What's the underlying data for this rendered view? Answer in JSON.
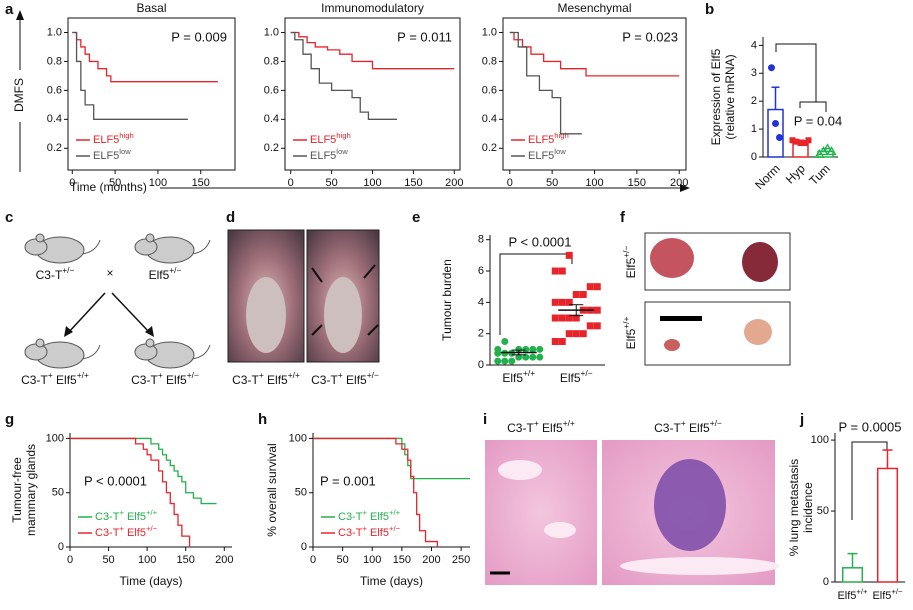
{
  "chart_data": [
    {
      "type": "step",
      "panel": "a",
      "title": "Basal",
      "annotation": "P = 0.009",
      "ylabel": "DMFS",
      "xlabel": "Time (months)",
      "frame": true,
      "legend": "lower left",
      "xlim": [
        -5,
        190
      ],
      "xticks": [
        0,
        50,
        100,
        150
      ],
      "ylim": [
        0.05,
        1.1
      ],
      "yticks": [
        0.2,
        0.4,
        0.6,
        0.8,
        {
          "value": 1,
          "label": "1.0"
        }
      ],
      "series": [
        {
          "name": [
            "ELF5",
            "high"
          ],
          "color": "#e8242b",
          "x": [
            0,
            5,
            10,
            15,
            20,
            30,
            40,
            45,
            170
          ],
          "values": [
            1,
            0.95,
            0.9,
            0.85,
            0.8,
            0.75,
            0.7,
            0.66,
            0.66
          ]
        },
        {
          "name": [
            "ELF5",
            "low"
          ],
          "color": "#555555",
          "x": [
            0,
            5,
            10,
            15,
            25,
            135
          ],
          "values": [
            1,
            0.8,
            0.6,
            0.5,
            0.4,
            0.4
          ]
        }
      ]
    },
    {
      "type": "step",
      "title": "Immunomodulatory",
      "annotation": "P = 0.011",
      "frame": true,
      "legend": "lower left",
      "xlim": [
        -7,
        207
      ],
      "xticks": [
        0,
        50,
        100,
        150,
        200
      ],
      "ylim": [
        0.05,
        1.1
      ],
      "yticks": [
        0.2,
        0.4,
        0.6,
        0.8,
        {
          "value": 1,
          "label": "1.0"
        }
      ],
      "series": [
        {
          "name": [
            "ELF5",
            "high"
          ],
          "color": "#e8242b",
          "x": [
            0,
            10,
            20,
            30,
            45,
            60,
            75,
            100,
            200
          ],
          "values": [
            1,
            0.97,
            0.93,
            0.9,
            0.88,
            0.85,
            0.8,
            0.75,
            0.75
          ]
        },
        {
          "name": [
            "ELF5",
            "low"
          ],
          "color": "#555555",
          "x": [
            0,
            5,
            15,
            25,
            35,
            50,
            75,
            85,
            95,
            130
          ],
          "values": [
            1,
            0.95,
            0.85,
            0.75,
            0.65,
            0.6,
            0.55,
            0.45,
            0.4,
            0.4
          ]
        }
      ]
    },
    {
      "type": "step",
      "title": "Mesenchymal",
      "annotation": "P = 0.023",
      "frame": true,
      "legend": "lower left",
      "xlim": [
        -8,
        208
      ],
      "xticks": [
        0,
        50,
        100,
        150,
        200
      ],
      "ylim": [
        0.05,
        1.1
      ],
      "yticks": [
        0.2,
        0.4,
        0.6,
        0.8,
        {
          "value": 1,
          "label": "1.0"
        }
      ],
      "series": [
        {
          "name": [
            "ELF5",
            "high"
          ],
          "color": "#e8242b",
          "x": [
            0,
            5,
            15,
            25,
            40,
            60,
            90,
            200
          ],
          "values": [
            1,
            0.95,
            0.9,
            0.85,
            0.8,
            0.75,
            0.7,
            0.7
          ]
        },
        {
          "name": [
            "ELF5",
            "low"
          ],
          "color": "#555555",
          "x": [
            0,
            10,
            20,
            35,
            50,
            60,
            85
          ],
          "values": [
            1,
            0.9,
            0.7,
            0.6,
            0.55,
            0.3,
            0.3
          ]
        }
      ]
    },
    {
      "type": "dotbar",
      "panel": "b",
      "annotation": "P = 0.04",
      "ylabel": [
        "Expression of Elf5",
        "(relative mRNA)"
      ],
      "categories": [
        "Norm",
        "Hyp",
        "Tum"
      ],
      "colors": [
        "#2433d6",
        "#e8242b",
        "#22b14c"
      ],
      "values": [
        1.7,
        0.55,
        0.2
      ],
      "errors": [
        0.8,
        0.05,
        0.1
      ],
      "points": [
        [
          3.2,
          1.2,
          0.7
        ],
        [
          0.6,
          0.55,
          0.5,
          0.5,
          0.6
        ],
        [
          0.1,
          0.2,
          0.3,
          0.2
        ]
      ],
      "ylim": [
        0,
        4.3
      ],
      "yticks": [
        0,
        1,
        2,
        3,
        4
      ]
    },
    {
      "type": "scattermean",
      "panel": "e",
      "annotation": "P < 0.0001",
      "ylabel": [
        "Tumour burden"
      ],
      "categories": [
        [
          "Elf5",
          "+/+"
        ],
        [
          "Elf5",
          "+/−"
        ]
      ],
      "colors": [
        "#22b14c",
        "#e8242b"
      ],
      "values": [
        0.8,
        3.5
      ],
      "errors": [
        0.15,
        0.35
      ],
      "points": [
        [
          0.25,
          0.25,
          0.25,
          0.5,
          0.5,
          0.5,
          0.5,
          0.75,
          0.75,
          0.75,
          1,
          1,
          1,
          1,
          1,
          1.5
        ],
        [
          1.5,
          1.5,
          2,
          2,
          2,
          2.5,
          2.5,
          3,
          3,
          3,
          3,
          3.5,
          3.5,
          3.5,
          4,
          4,
          4,
          4.5,
          4.5,
          5,
          5,
          6,
          6,
          7
        ]
      ],
      "ylim": [
        0,
        8.3
      ],
      "yticks": [
        0,
        2,
        4,
        6,
        8
      ]
    },
    {
      "type": "step",
      "panel": "g",
      "annotation": "P < 0.0001",
      "ylabel": [
        "Tumour-free",
        "mammary glands"
      ],
      "xlabel": "Time (days)",
      "frame": false,
      "legend": "lower left",
      "xlim": [
        0,
        210
      ],
      "xticks": [
        0,
        50,
        100,
        150,
        200
      ],
      "ylim": [
        0,
        105
      ],
      "yticks": [
        0,
        50,
        100
      ],
      "series": [
        {
          "name": [
            "C3-T",
            "+",
            " Elf5",
            "+/+"
          ],
          "color": "#22b14c",
          "x": [
            0,
            105,
            115,
            120,
            125,
            130,
            135,
            140,
            145,
            150,
            160,
            170,
            190
          ],
          "values": [
            100,
            95,
            90,
            85,
            80,
            75,
            70,
            65,
            60,
            50,
            45,
            40,
            40
          ]
        },
        {
          "name": [
            "C3-T",
            "+",
            " Elf5",
            "+/−"
          ],
          "color": "#e8242b",
          "x": [
            0,
            85,
            95,
            100,
            105,
            115,
            120,
            125,
            130,
            135,
            140,
            145,
            155
          ],
          "values": [
            100,
            95,
            90,
            85,
            80,
            70,
            60,
            50,
            40,
            30,
            20,
            10,
            0
          ]
        }
      ]
    },
    {
      "type": "step",
      "panel": "h",
      "annotation": "P = 0.001",
      "ylabel": [
        "% overall survival"
      ],
      "xlabel": "Time (days)",
      "frame": false,
      "legend": "lower left",
      "xlim": [
        0,
        265
      ],
      "xticks": [
        0,
        50,
        100,
        150,
        200,
        250
      ],
      "ylim": [
        0,
        105
      ],
      "yticks": [
        0,
        50,
        100
      ],
      "series": [
        {
          "name": [
            "C3-T",
            "+",
            " Elf5",
            "+/+"
          ],
          "color": "#22b14c",
          "x": [
            0,
            150,
            155,
            160,
            165,
            265
          ],
          "values": [
            100,
            95,
            85,
            75,
            63,
            63
          ]
        },
        {
          "name": [
            "C3-T",
            "+",
            " Elf5",
            "+/−"
          ],
          "color": "#e8242b",
          "x": [
            0,
            140,
            150,
            160,
            165,
            170,
            175,
            180,
            190,
            210
          ],
          "values": [
            100,
            95,
            90,
            80,
            65,
            50,
            30,
            15,
            5,
            0
          ]
        }
      ]
    },
    {
      "type": "bar",
      "panel": "j",
      "annotation": "P = 0.0005",
      "ylabel": [
        "% lung metastasis",
        "incidence"
      ],
      "categories": [
        [
          "Elf5",
          "+/+"
        ],
        [
          "Elf5",
          "+/−"
        ]
      ],
      "colors": [
        "#22b14c",
        "#e8242b"
      ],
      "values": [
        10,
        80
      ],
      "errors": [
        10,
        13
      ],
      "ylim": [
        0,
        105
      ],
      "yticks": [
        0,
        50,
        100
      ]
    }
  ],
  "panels": {
    "c": {
      "letter": "c",
      "labels": [
        [
          "C3-T",
          "+/−"
        ],
        "×",
        [
          "Elf5",
          "+/−"
        ],
        [
          "C3-T",
          "+",
          " Elf5",
          "+/+"
        ],
        [
          "C3-T",
          "+",
          " Elf5",
          "+/−"
        ]
      ]
    },
    "d": {
      "letter": "d",
      "labels": [
        [
          "C3-T",
          "+",
          " Elf5",
          "+/+"
        ],
        [
          "C3-T",
          "+",
          " Elf5",
          "+/−"
        ]
      ]
    },
    "f": {
      "letter": "f",
      "labels": [
        [
          "Elf5",
          "+/−"
        ],
        [
          "Elf5",
          "+/+"
        ]
      ]
    },
    "i": {
      "letter": "i",
      "labels": [
        [
          "C3-T",
          "+",
          " Elf5",
          "+/+"
        ],
        [
          "C3-T",
          "+",
          " Elf5",
          "+/−"
        ]
      ]
    }
  }
}
